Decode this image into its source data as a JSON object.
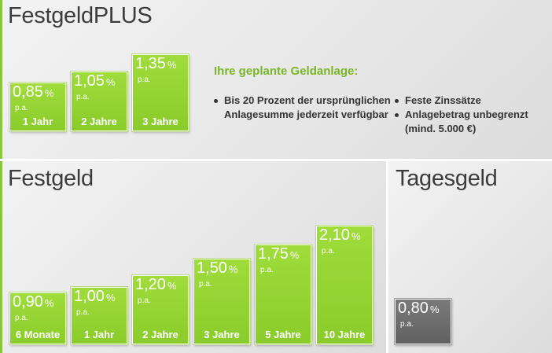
{
  "festgeld_plus": {
    "title": "FestgeldPLUS",
    "products": [
      {
        "rate": "0,85",
        "pct": "%",
        "pa": "p.a.",
        "term": "1 Jahr"
      },
      {
        "rate": "1,05",
        "pct": "%",
        "pa": "p.a.",
        "term": "2 Jahre"
      },
      {
        "rate": "1,35",
        "pct": "%",
        "pa": "p.a.",
        "term": "3 Jahre"
      }
    ],
    "info_heading": "Ihre geplante Geldanlage:",
    "features_left": [
      "Bis 20 Prozent der ursprünglichen Anlagesumme jederzeit verfügbar"
    ],
    "features_right": [
      "Feste Zinssätze",
      "Anlagebetrag unbegrenzt (mind. 5.000 €)"
    ]
  },
  "festgeld": {
    "title": "Festgeld",
    "products": [
      {
        "rate": "0,90",
        "pct": "%",
        "pa": "p.a.",
        "term": "6 Monate"
      },
      {
        "rate": "1,00",
        "pct": "%",
        "pa": "p.a.",
        "term": "1 Jahr"
      },
      {
        "rate": "1,20",
        "pct": "%",
        "pa": "p.a.",
        "term": "2 Jahre"
      },
      {
        "rate": "1,50",
        "pct": "%",
        "pa": "p.a.",
        "term": "3 Jahre"
      },
      {
        "rate": "1,75",
        "pct": "%",
        "pa": "p.a.",
        "term": "5 Jahre"
      },
      {
        "rate": "2,10",
        "pct": "%",
        "pa": "p.a.",
        "term": "10 Jahre"
      }
    ]
  },
  "tagesgeld": {
    "title": "Tagesgeld",
    "products": [
      {
        "rate": "0,80",
        "pct": "%",
        "pa": "p.a."
      }
    ]
  },
  "colors": {
    "accent_green": "#8cc63f",
    "bar_green": "#9fdc3c",
    "bar_gray": "#6e6e6e",
    "heading_green": "#7ab52a"
  }
}
